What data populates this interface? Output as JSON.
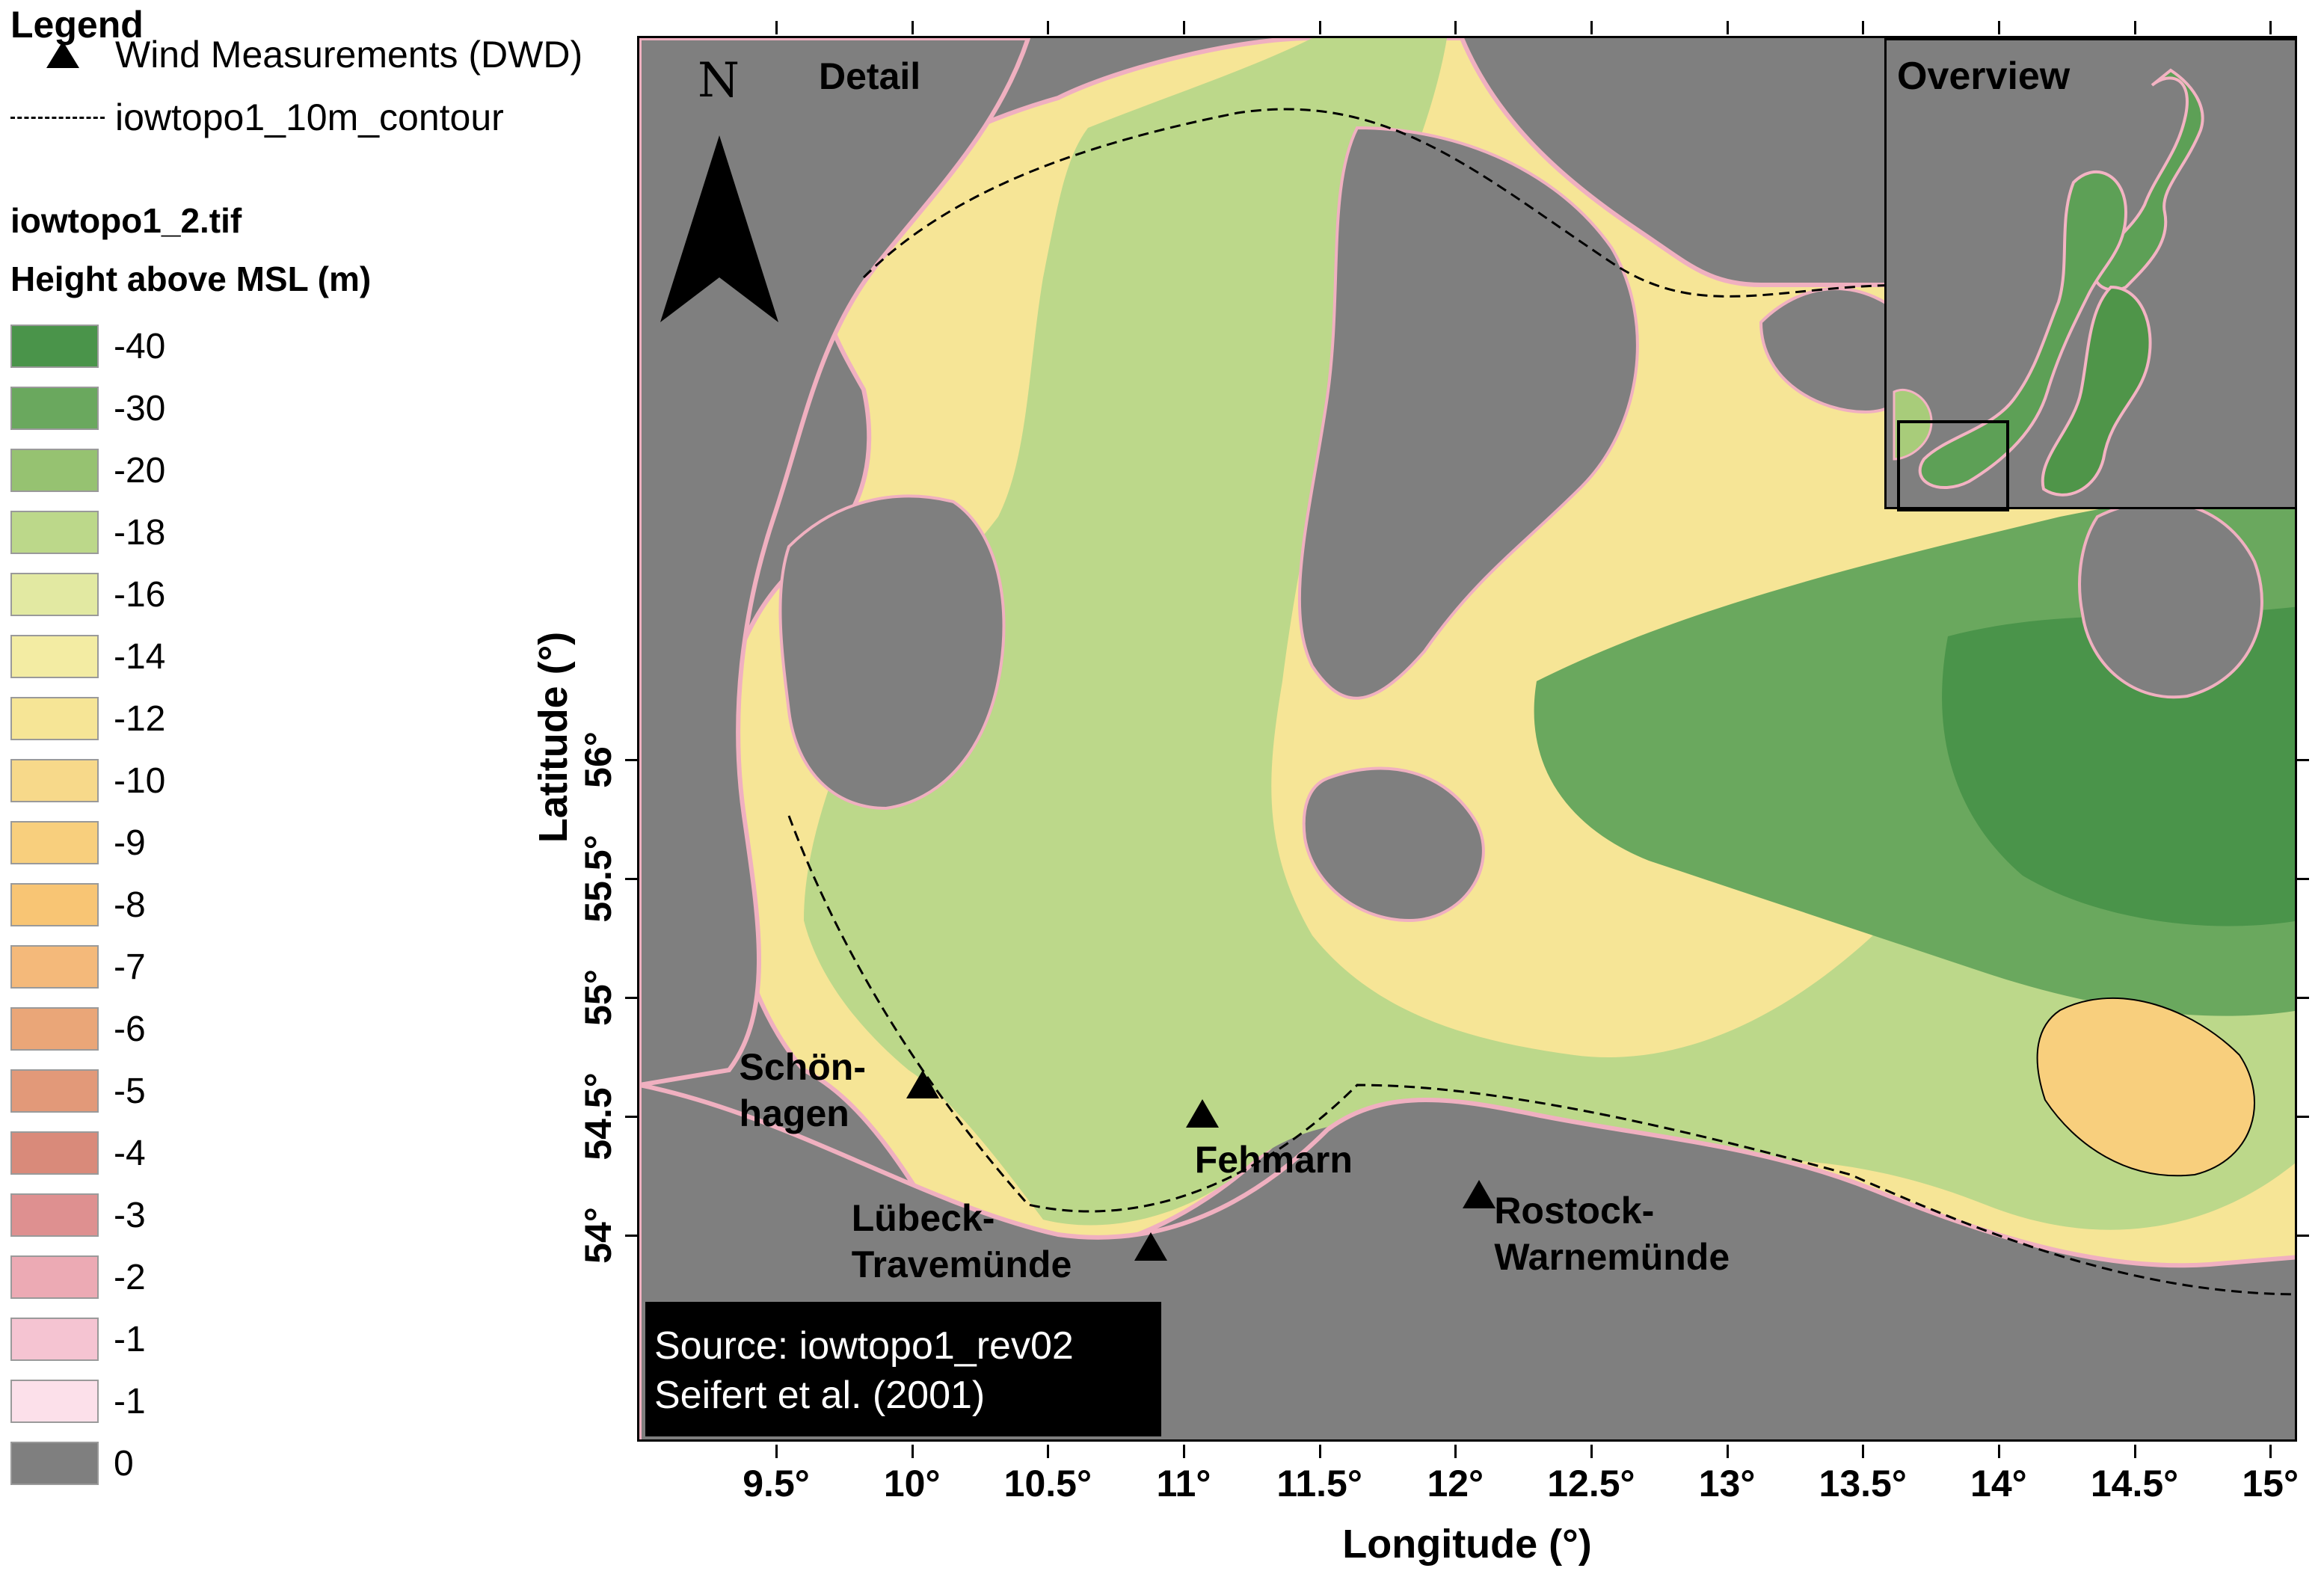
{
  "legend": {
    "title": "Legend",
    "station_label": "Wind Measurements (DWD)",
    "contour_label": "iowtopo1_10m_contour",
    "raster_name": "iowtopo1_2.tif",
    "raster_field": "Height above MSL (m)",
    "classes": [
      {
        "label": "-40",
        "color": "#4a944a"
      },
      {
        "label": "-30",
        "color": "#6aa85e"
      },
      {
        "label": "-20",
        "color": "#96c271"
      },
      {
        "label": "-18",
        "color": "#bcd88a"
      },
      {
        "label": "-16",
        "color": "#e2e9a2"
      },
      {
        "label": "-14",
        "color": "#f3eca3"
      },
      {
        "label": "-12",
        "color": "#f6e596"
      },
      {
        "label": "-10",
        "color": "#f7d98a"
      },
      {
        "label": "-9",
        "color": "#f8cf7d"
      },
      {
        "label": "-8",
        "color": "#f8c574"
      },
      {
        "label": "-7",
        "color": "#f4b97a"
      },
      {
        "label": "-6",
        "color": "#eaa678"
      },
      {
        "label": "-5",
        "color": "#e29979"
      },
      {
        "label": "-4",
        "color": "#d98a7a"
      },
      {
        "label": "-3",
        "color": "#de9090"
      },
      {
        "label": "-2",
        "color": "#ecaab4"
      },
      {
        "label": "-1",
        "color": "#f5c4d2"
      },
      {
        "label": "-1",
        "color": "#fce0ea"
      },
      {
        "label": "0",
        "color": "#7f7f7f"
      }
    ]
  },
  "map": {
    "detail_label": "Detail",
    "north_letter": "N",
    "overview_label": "Overview",
    "source_line1": "Source: iowtopo1_rev02",
    "source_line2": "Seifert et al. (2001)",
    "stations": [
      {
        "name": "Schön-\nhagen",
        "lon": 10.03,
        "lat": 54.64
      },
      {
        "name": "Fehmarn",
        "lon": 11.06,
        "lat": 54.52
      },
      {
        "name": "Rostock-\nWarnemünde",
        "lon": 12.08,
        "lat": 54.18
      },
      {
        "name": "Lübeck-\nTravemünde",
        "lon": 10.87,
        "lat": 53.96
      }
    ]
  },
  "axes": {
    "xlabel": "Longitude (°)",
    "ylabel": "Latitude (°)",
    "x_ticks": [
      9.5,
      10,
      10.5,
      11,
      11.5,
      12,
      12.5,
      13,
      13.5,
      14,
      14.5,
      15
    ],
    "x_tick_labels": [
      "9.5°",
      "10°",
      "10.5°",
      "11°",
      "11.5°",
      "12°",
      "12.5°",
      "13°",
      "13.5°",
      "14°",
      "14.5°",
      "15°"
    ],
    "y_ticks": [
      54,
      54.5,
      55,
      55.5,
      56
    ],
    "y_tick_labels": [
      "54°",
      "54.5°",
      "55°",
      "55.5°",
      "56°"
    ]
  }
}
